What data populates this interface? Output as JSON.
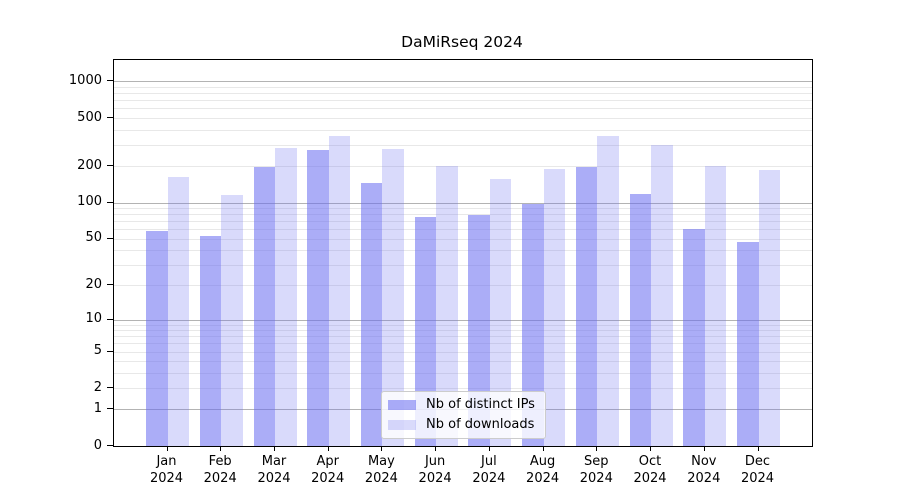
{
  "figure": {
    "title": "DaMiRseq 2024"
  },
  "chart_data": {
    "type": "bar",
    "title": "DaMiRseq 2024",
    "categories": [
      "Jan",
      "Feb",
      "Mar",
      "Apr",
      "May",
      "Jun",
      "Jul",
      "Aug",
      "Sep",
      "Oct",
      "Nov",
      "Dec"
    ],
    "year_label": "2024",
    "series": [
      {
        "name": "Nb of distinct IPs",
        "color": "rgba(102,105,240,0.55)",
        "values": [
          58,
          53,
          198,
          270,
          145,
          76,
          79,
          98,
          198,
          117,
          60,
          47
        ]
      },
      {
        "name": "Nb of downloads",
        "color": "rgba(104,108,238,0.25)",
        "values": [
          163,
          115,
          285,
          352,
          280,
          200,
          158,
          190,
          358,
          300,
          201,
          185
        ]
      }
    ],
    "xlabel": "",
    "ylabel": "",
    "y_axis": {
      "scale": "log(1+v)",
      "ticks": [
        1000,
        500,
        200,
        100,
        50,
        20,
        10,
        5,
        2,
        1,
        0
      ],
      "ylim": [
        0,
        1500
      ],
      "grid": true
    },
    "legend": {
      "position": "lower center",
      "entries": [
        "Nb of distinct IPs",
        "Nb of downloads"
      ]
    },
    "colors": {
      "major_grid": "#b3b3b3",
      "minor_grid": "#e8e8e8",
      "axis": "#000000",
      "background": "#ffffff"
    }
  }
}
